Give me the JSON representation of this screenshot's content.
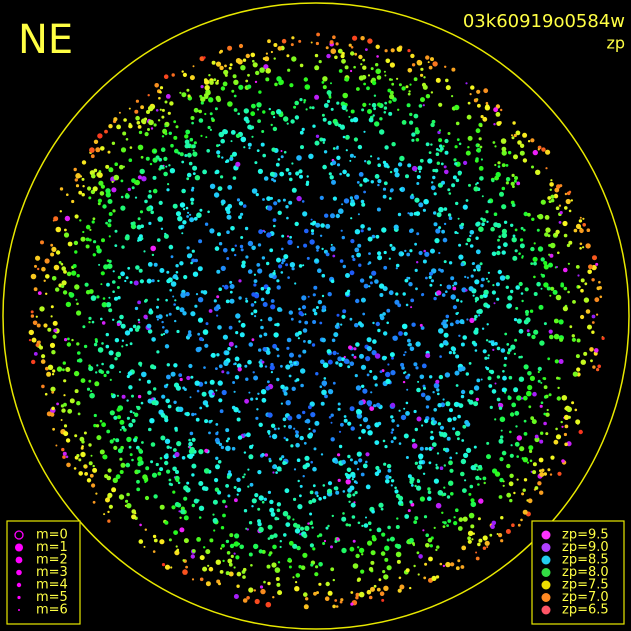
{
  "header": {
    "direction": "NE",
    "frame_id": "03k60919o0584w",
    "mode": "zp"
  },
  "magnitude_legend": {
    "items": [
      "m=0",
      "m=1",
      "m=2",
      "m=3",
      "m=4",
      "m=5",
      "m=6"
    ]
  },
  "zp_legend": {
    "items": [
      "zp=9.5",
      "zp=9.0",
      "zp=8.5",
      "zp=8.0",
      "zp=7.5",
      "zp=7.0",
      "zp=6.5"
    ]
  }
}
